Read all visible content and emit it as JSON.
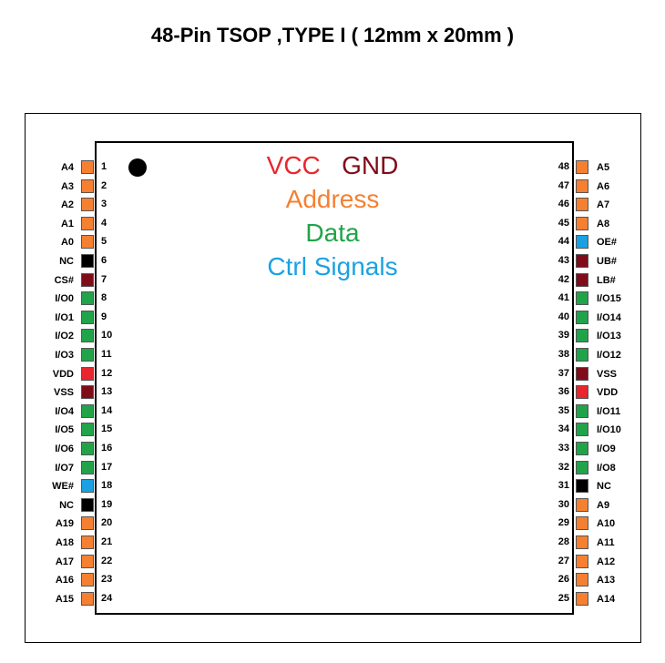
{
  "title": "48-Pin TSOP ,TYPE I ( 12mm x 20mm )",
  "legend": {
    "vcc": "VCC",
    "gnd": "GND",
    "address": "Address",
    "data": "Data",
    "ctrl": "Ctrl Signals"
  },
  "colors": {
    "vcc": "#e8262d",
    "gnd": "#7f0c1a",
    "address": "#f58031",
    "data": "#21a34a",
    "ctrl": "#1ba1e2",
    "nc": "#000000"
  },
  "left_pins": [
    {
      "num": "1",
      "name": "A4",
      "type": "address"
    },
    {
      "num": "2",
      "name": "A3",
      "type": "address"
    },
    {
      "num": "3",
      "name": "A2",
      "type": "address"
    },
    {
      "num": "4",
      "name": "A1",
      "type": "address"
    },
    {
      "num": "5",
      "name": "A0",
      "type": "address"
    },
    {
      "num": "6",
      "name": "NC",
      "type": "nc"
    },
    {
      "num": "7",
      "name": "CS#",
      "type": "gnd"
    },
    {
      "num": "8",
      "name": "I/O0",
      "type": "data"
    },
    {
      "num": "9",
      "name": "I/O1",
      "type": "data"
    },
    {
      "num": "10",
      "name": "I/O2",
      "type": "data"
    },
    {
      "num": "11",
      "name": "I/O3",
      "type": "data"
    },
    {
      "num": "12",
      "name": "VDD",
      "type": "vcc"
    },
    {
      "num": "13",
      "name": "VSS",
      "type": "gnd"
    },
    {
      "num": "14",
      "name": "I/O4",
      "type": "data"
    },
    {
      "num": "15",
      "name": "I/O5",
      "type": "data"
    },
    {
      "num": "16",
      "name": "I/O6",
      "type": "data"
    },
    {
      "num": "17",
      "name": "I/O7",
      "type": "data"
    },
    {
      "num": "18",
      "name": "WE#",
      "type": "ctrl"
    },
    {
      "num": "19",
      "name": "NC",
      "type": "nc"
    },
    {
      "num": "20",
      "name": "A19",
      "type": "address"
    },
    {
      "num": "21",
      "name": "A18",
      "type": "address"
    },
    {
      "num": "22",
      "name": "A17",
      "type": "address"
    },
    {
      "num": "23",
      "name": "A16",
      "type": "address"
    },
    {
      "num": "24",
      "name": "A15",
      "type": "address"
    }
  ],
  "right_pins": [
    {
      "num": "48",
      "name": "A5",
      "type": "address"
    },
    {
      "num": "47",
      "name": "A6",
      "type": "address"
    },
    {
      "num": "46",
      "name": "A7",
      "type": "address"
    },
    {
      "num": "45",
      "name": "A8",
      "type": "address"
    },
    {
      "num": "44",
      "name": "OE#",
      "type": "ctrl"
    },
    {
      "num": "43",
      "name": "UB#",
      "type": "gnd"
    },
    {
      "num": "42",
      "name": "LB#",
      "type": "gnd"
    },
    {
      "num": "41",
      "name": "I/O15",
      "type": "data"
    },
    {
      "num": "40",
      "name": "I/O14",
      "type": "data"
    },
    {
      "num": "39",
      "name": "I/O13",
      "type": "data"
    },
    {
      "num": "38",
      "name": "I/O12",
      "type": "data"
    },
    {
      "num": "37",
      "name": "VSS",
      "type": "gnd"
    },
    {
      "num": "36",
      "name": "VDD",
      "type": "vcc"
    },
    {
      "num": "35",
      "name": "I/O11",
      "type": "data"
    },
    {
      "num": "34",
      "name": "I/O10",
      "type": "data"
    },
    {
      "num": "33",
      "name": "I/O9",
      "type": "data"
    },
    {
      "num": "32",
      "name": "I/O8",
      "type": "data"
    },
    {
      "num": "31",
      "name": "NC",
      "type": "nc"
    },
    {
      "num": "30",
      "name": "A9",
      "type": "address"
    },
    {
      "num": "29",
      "name": "A10",
      "type": "address"
    },
    {
      "num": "28",
      "name": "A11",
      "type": "address"
    },
    {
      "num": "27",
      "name": "A12",
      "type": "address"
    },
    {
      "num": "26",
      "name": "A13",
      "type": "address"
    },
    {
      "num": "25",
      "name": "A14",
      "type": "address"
    }
  ]
}
